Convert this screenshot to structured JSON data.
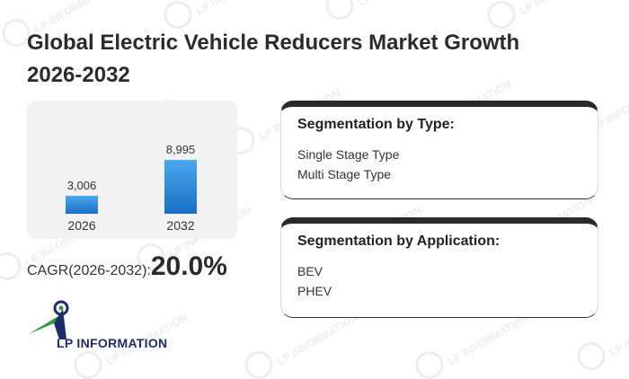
{
  "title": "Global Electric Vehicle Reducers Market Growth 2026-2032",
  "chart_data": {
    "type": "bar",
    "title": "",
    "xlabel": "",
    "ylabel": "",
    "categories": [
      "2026",
      "2032"
    ],
    "values": [
      3006,
      8995
    ],
    "value_labels": [
      "3,006",
      "8,995"
    ],
    "ylim": [
      0,
      9000
    ],
    "grid": false,
    "legend": "none",
    "bar_color_top": "#4aa8ec",
    "bar_color_bottom": "#1a6fc4"
  },
  "cagr": {
    "label": "CAGR(2026-2032):",
    "value": "20.0%"
  },
  "segmentation_type": {
    "title": "Segmentation by Type:",
    "items": [
      "Single Stage Type",
      "Multi Stage Type"
    ]
  },
  "segmentation_application": {
    "title": "Segmentation by Application:",
    "items": [
      "BEV",
      "PHEV"
    ]
  },
  "logo": {
    "text": "LP INFORMATION",
    "icon": "lp-information-logo-icon"
  },
  "watermark": {
    "text": "LP INFORMATION"
  },
  "colors": {
    "logo_blue": "#1d2c6b",
    "logo_green": "#2e9b3c",
    "card_border": "#2a2a2a",
    "panel_bg": "#f2f2f2"
  }
}
